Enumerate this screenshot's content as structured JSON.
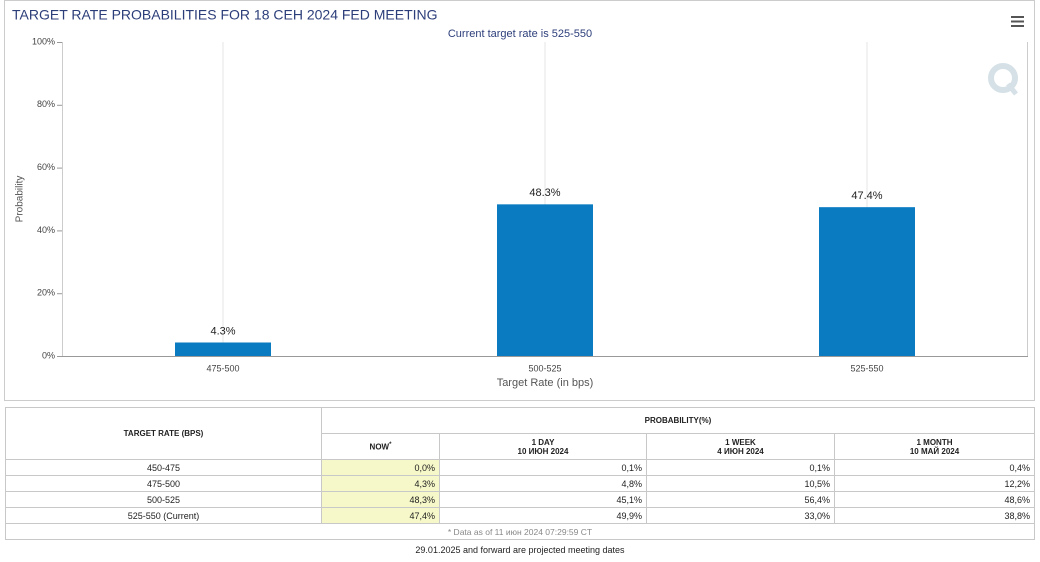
{
  "chart_data": {
    "type": "bar",
    "title": "TARGET RATE PROBABILITIES FOR 18 СЕН 2024 FED MEETING",
    "subtitle": "Current target rate is 525-550",
    "x_label": "Target Rate (in bps)",
    "y_label": "Probability",
    "categories": [
      "475-500",
      "500-525",
      "525-550"
    ],
    "values": [
      4.3,
      48.3,
      47.4
    ],
    "value_labels": [
      "4.3%",
      "48.3%",
      "47.4%"
    ],
    "color": "#0a7bc1",
    "ylim": [
      0,
      100
    ],
    "yticks": [
      {
        "value": 0,
        "label": "0%"
      },
      {
        "value": 20,
        "label": "20%"
      },
      {
        "value": 40,
        "label": "40%"
      },
      {
        "value": 60,
        "label": "60%"
      },
      {
        "value": 80,
        "label": "80%"
      },
      {
        "value": 100,
        "label": "100%"
      }
    ]
  },
  "table": {
    "header": {
      "target_rate": "TARGET RATE (BPS)",
      "probability": "PROBABILITY(%)",
      "columns": [
        {
          "label": "NOW",
          "note": "*"
        },
        {
          "label": "1 DAY",
          "date": "10 ИЮН 2024"
        },
        {
          "label": "1 WEEK",
          "date": "4 ИЮН 2024"
        },
        {
          "label": "1 MONTH",
          "date": "10 МАЙ 2024"
        }
      ]
    },
    "rows": [
      [
        "450-475",
        "0,0%",
        "0,1%",
        "0,1%",
        "0,4%"
      ],
      [
        "475-500",
        "4,3%",
        "4,8%",
        "10,5%",
        "12,2%"
      ],
      [
        "500-525",
        "48,3%",
        "45,1%",
        "56,4%",
        "48,6%"
      ],
      [
        "525-550 (Current)",
        "47,4%",
        "49,9%",
        "33,0%",
        "38,8%"
      ]
    ],
    "footnote": "* Data as of 11 июн 2024 07:29:59 CT"
  },
  "note": "29.01.2025 and forward are projected meeting dates"
}
